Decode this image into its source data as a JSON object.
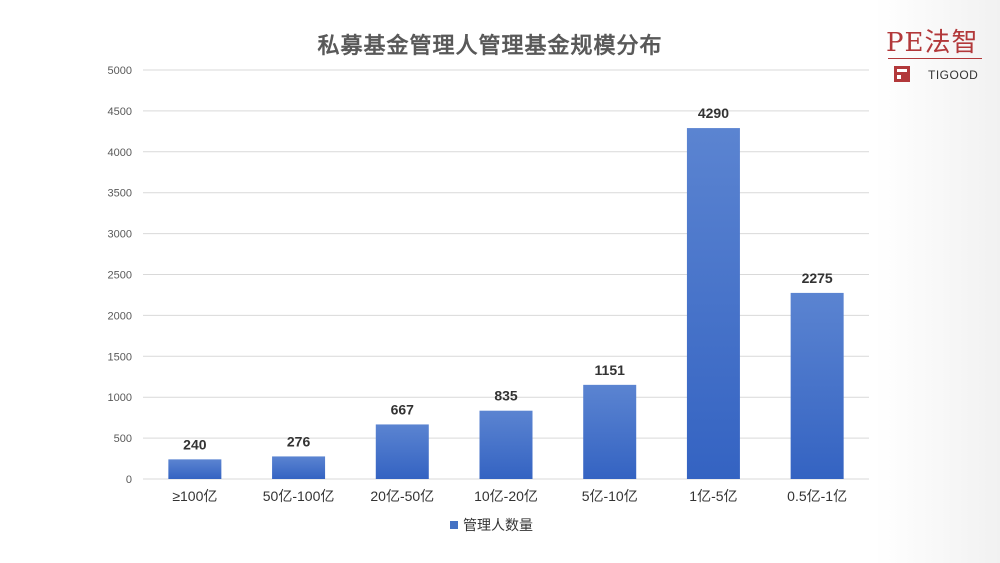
{
  "logo": {
    "text": "PE法智",
    "subtext": "TIGOOD"
  },
  "legend": {
    "label": "管理人数量"
  },
  "colors": {
    "bar_top": "#5b84d1",
    "bar_bottom": "#3463c2",
    "grid": "#d9d9d9",
    "axis_text": "#595959"
  },
  "chart_data": {
    "type": "bar",
    "title": "私募基金管理人管理基金规模分布",
    "categories": [
      "≥100亿",
      "50亿-100亿",
      "20亿-50亿",
      "10亿-20亿",
      "5亿-10亿",
      "1亿-5亿",
      "0.5亿-1亿"
    ],
    "series": [
      {
        "name": "管理人数量",
        "values": [
          240,
          276,
          667,
          835,
          1151,
          4290,
          2275
        ]
      }
    ],
    "ylim": [
      0,
      5000
    ],
    "yticks": [
      0,
      500,
      1000,
      1500,
      2000,
      2500,
      3000,
      3500,
      4000,
      4500,
      5000
    ],
    "grid": true,
    "legend_position": "bottom",
    "data_labels": true
  }
}
